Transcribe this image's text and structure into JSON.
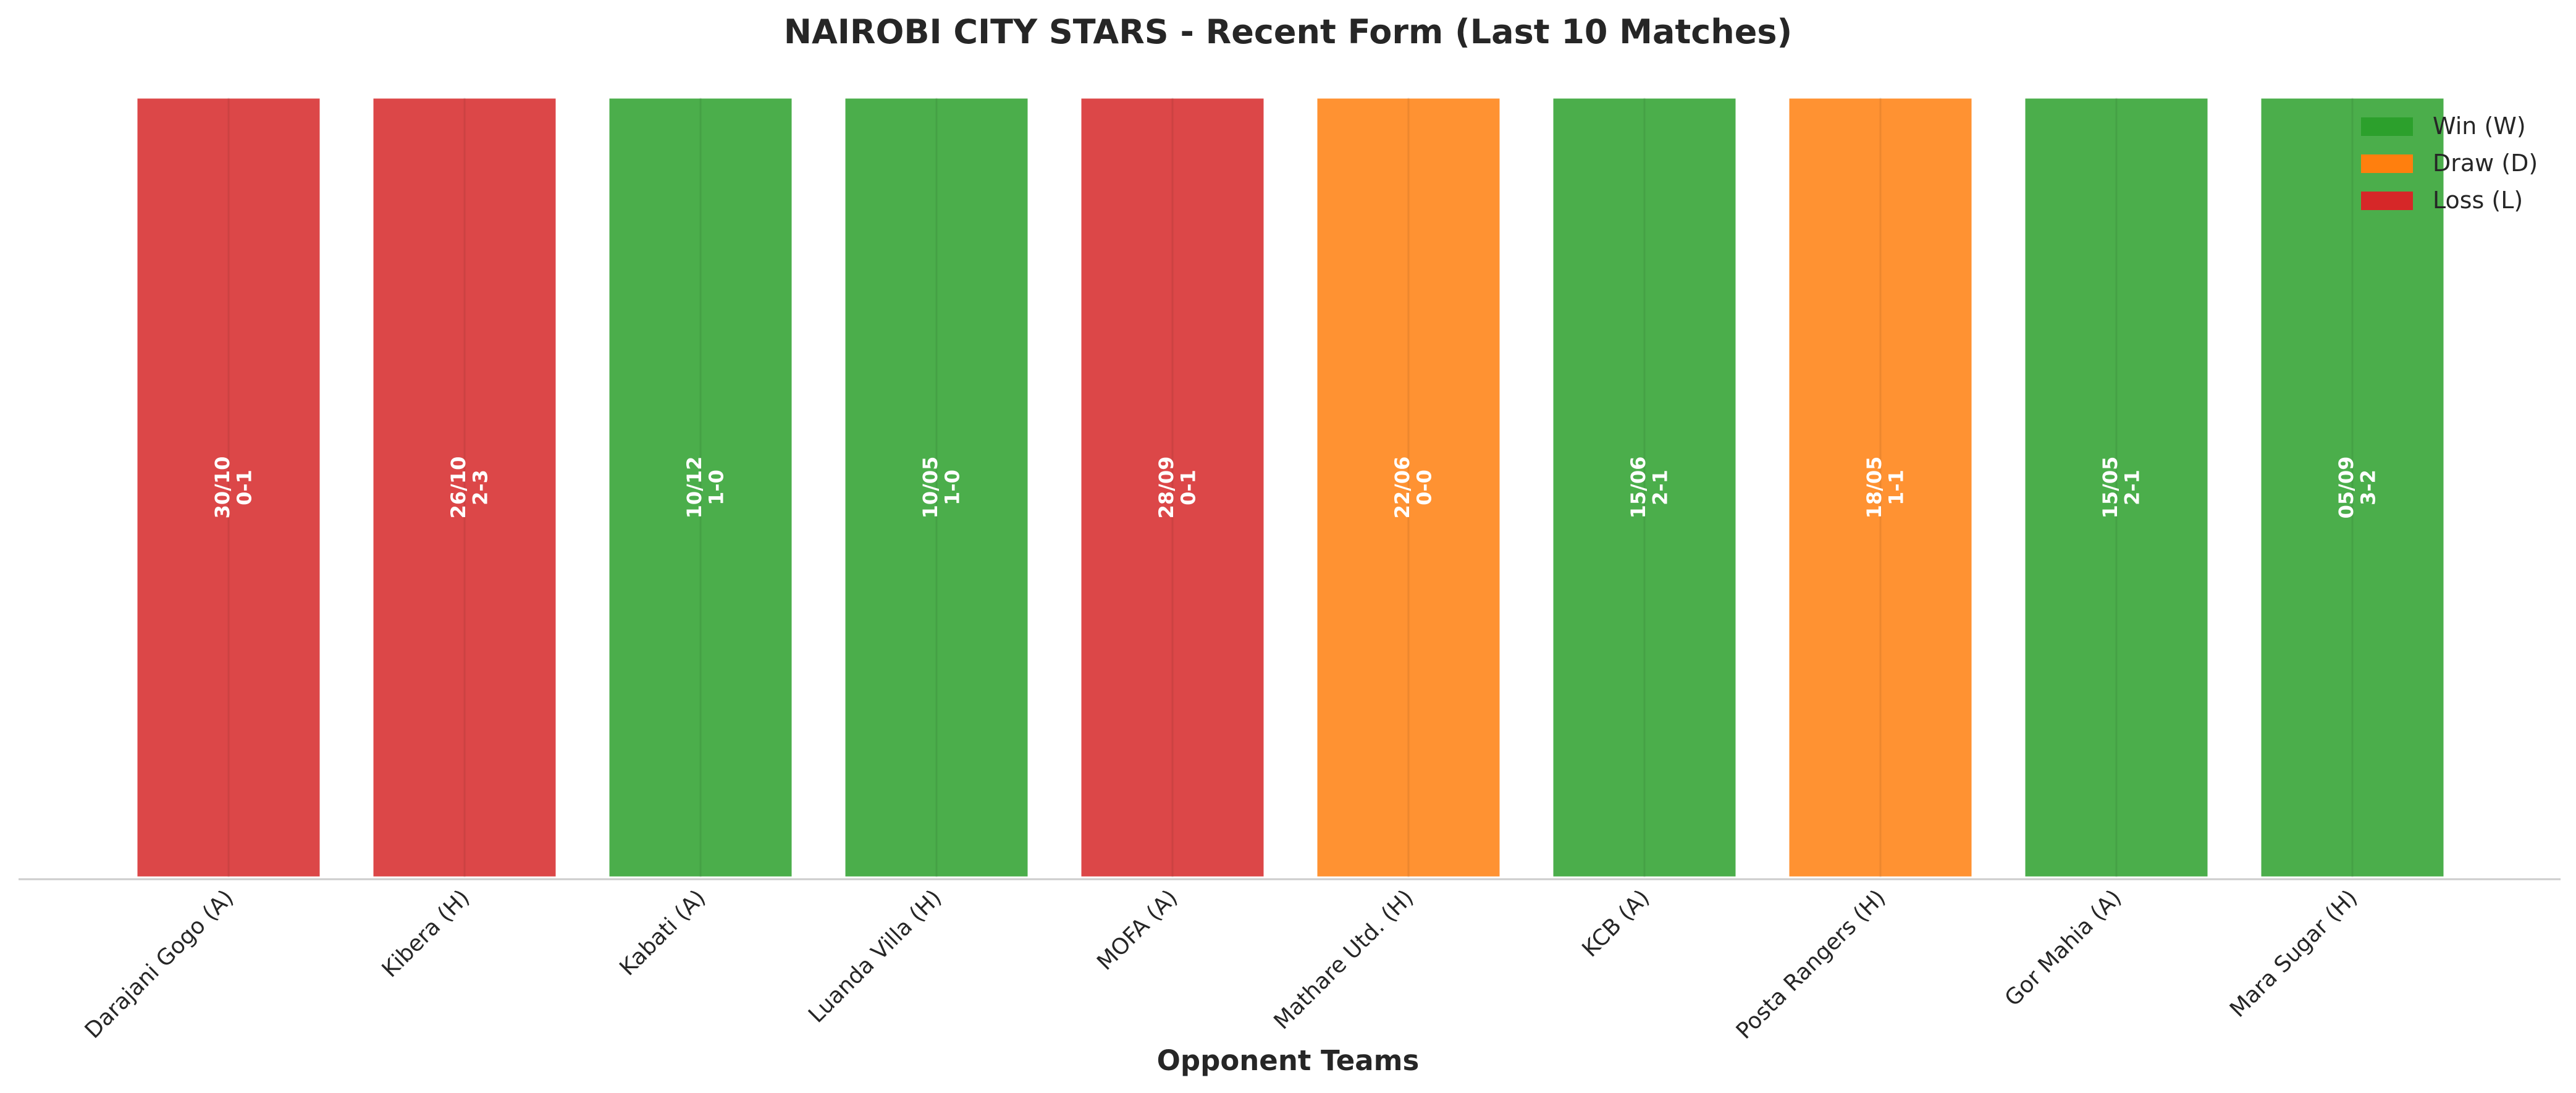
{
  "chart_data": {
    "type": "bar",
    "title": "NAIROBI CITY STARS - Recent Form (Last 10 Matches)",
    "xlabel": "Opponent Teams",
    "ylabel": "",
    "grid": false,
    "legend_placement": "top-right",
    "categories": [
      "Darajani Gogo (A)",
      "Kibera (H)",
      "Kabati (A)",
      "Luanda Villa (H)",
      "MOFA (A)",
      "Mathare Utd. (H)",
      "KCB (A)",
      "Posta Rangers (H)",
      "Gor Mahia (A)",
      "Mara Sugar (H)"
    ],
    "values": [
      1,
      1,
      1,
      1,
      1,
      1,
      1,
      1,
      1,
      1
    ],
    "results": [
      "L",
      "L",
      "W",
      "W",
      "L",
      "D",
      "W",
      "D",
      "W",
      "W"
    ],
    "dates": [
      "30/10",
      "26/10",
      "10/12",
      "10/05",
      "28/09",
      "22/06",
      "15/06",
      "18/05",
      "15/05",
      "05/09"
    ],
    "scores": [
      "0-1",
      "2-3",
      "1-0",
      "1-0",
      "0-1",
      "0-0",
      "2-1",
      "1-1",
      "2-1",
      "3-2"
    ],
    "legend": [
      {
        "key": "W",
        "label": "Win (W)",
        "color": "#2ca02c"
      },
      {
        "key": "D",
        "label": "Draw (D)",
        "color": "#ff7f0e"
      },
      {
        "key": "L",
        "label": "Loss (L)",
        "color": "#d62728"
      }
    ]
  }
}
